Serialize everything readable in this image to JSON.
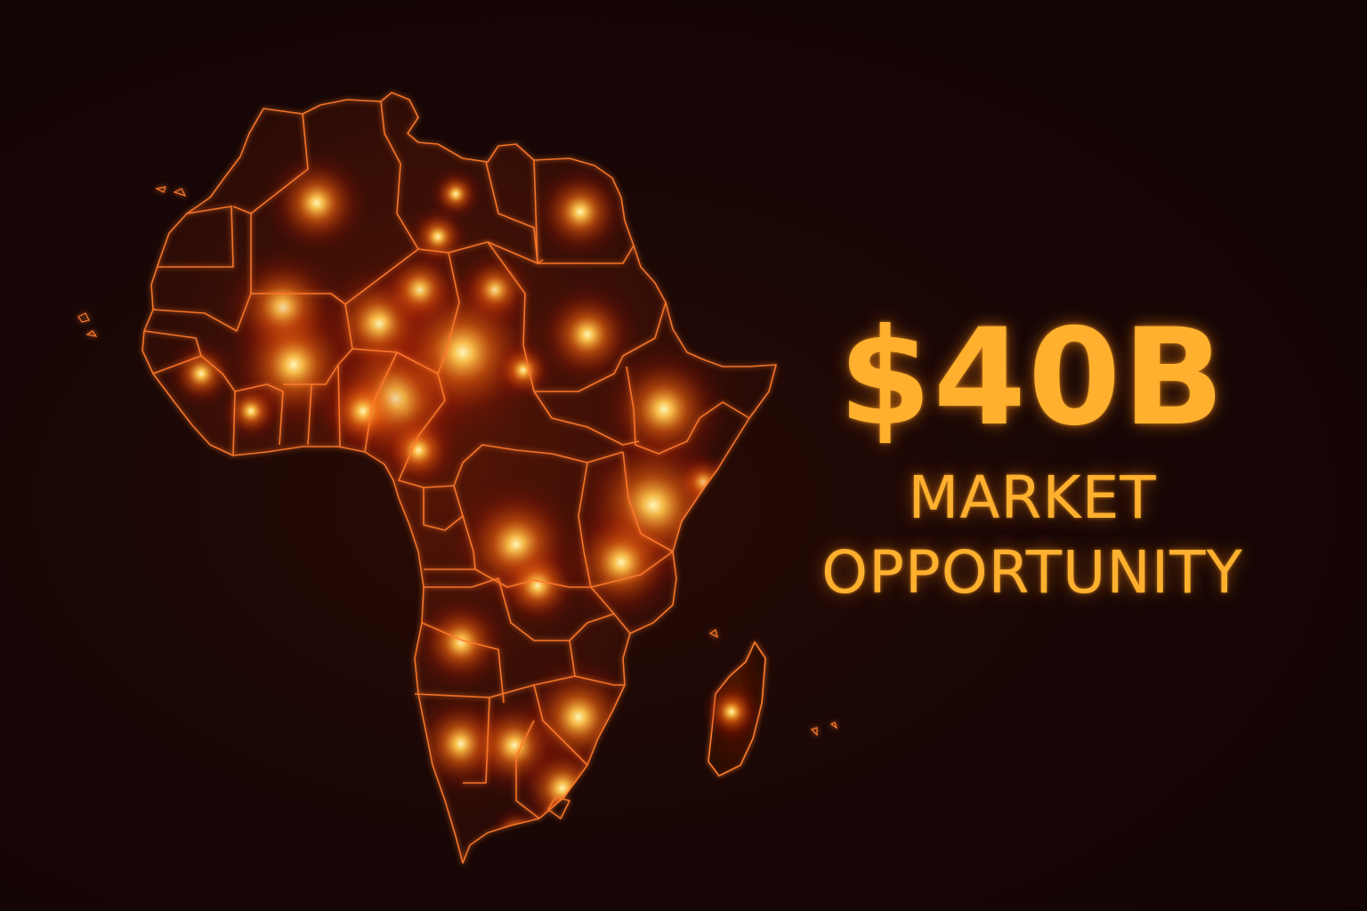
{
  "headline": {
    "amount": "$40B",
    "line1": "MARKET",
    "line2": "OPPORTUNITY"
  },
  "colors": {
    "background": "#150606",
    "border": "#ff7a2a",
    "glow_core": "#fff1a6",
    "glow_mid": "#ff8a1f",
    "glow_outer": "#c21a05",
    "text": "#ffb02e"
  },
  "map": {
    "region": "Africa",
    "style": "glowing country borders with city light hotspots",
    "includes": [
      "Madagascar"
    ]
  }
}
